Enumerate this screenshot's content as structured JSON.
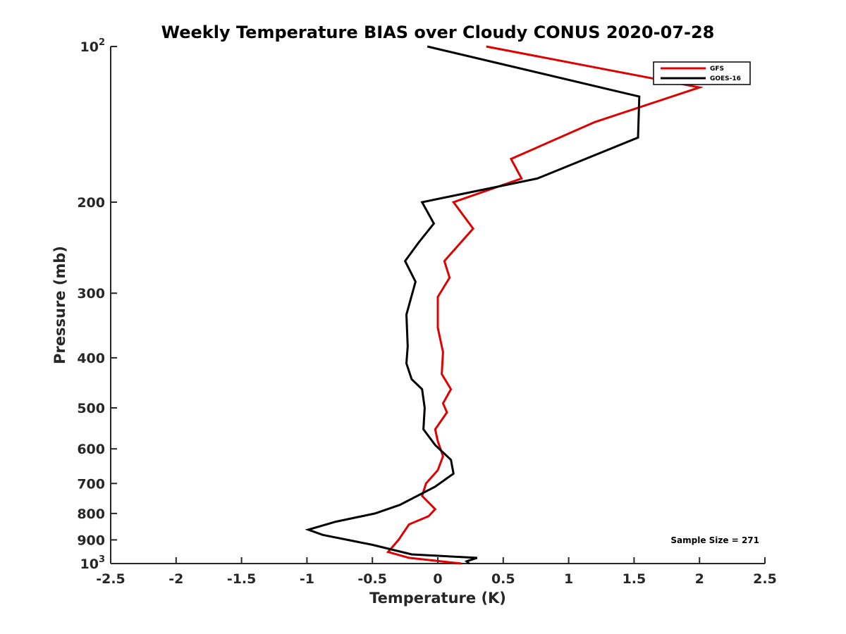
{
  "chart_data": {
    "type": "line",
    "title": "Weekly Temperature BIAS over Cloudy CONUS 2020-07-28",
    "xlabel": "Temperature (K)",
    "ylabel": "Pressure (mb)",
    "xlim": [
      -2.5,
      2.5
    ],
    "ylim": [
      100,
      1000
    ],
    "y_scale": "log",
    "y_reversed": true,
    "grid": false,
    "legend_position": "top-right",
    "x_ticks": [
      -2.5,
      -2,
      -1.5,
      -1,
      -0.5,
      0,
      0.5,
      1,
      1.5,
      2,
      2.5
    ],
    "x_tick_labels": [
      "-2.5",
      "-2",
      "-1.5",
      "-1",
      "-0.5",
      "0",
      "0.5",
      "1",
      "1.5",
      "2",
      "2.5"
    ],
    "y_ticks": [
      {
        "value": 100,
        "base": "10",
        "exp": "2"
      },
      {
        "value": 200,
        "label": "200"
      },
      {
        "value": 300,
        "label": "300"
      },
      {
        "value": 400,
        "label": "400"
      },
      {
        "value": 500,
        "label": "500"
      },
      {
        "value": 600,
        "label": "600"
      },
      {
        "value": 700,
        "label": "700"
      },
      {
        "value": 800,
        "label": "800"
      },
      {
        "value": 900,
        "label": "900"
      },
      {
        "value": 1000,
        "base": "10",
        "exp": "3"
      }
    ],
    "annotation": "Sample Size = 271",
    "series": [
      {
        "name": "GFS",
        "color": "#e00000",
        "points": [
          [
            0.37,
            100
          ],
          [
            2.0,
            120
          ],
          [
            1.2,
            140
          ],
          [
            0.56,
            165
          ],
          [
            0.64,
            180
          ],
          [
            0.12,
            200
          ],
          [
            0.27,
            225
          ],
          [
            0.05,
            260
          ],
          [
            0.09,
            280
          ],
          [
            0.0,
            305
          ],
          [
            0.0,
            350
          ],
          [
            0.04,
            390
          ],
          [
            0.03,
            430
          ],
          [
            0.1,
            460
          ],
          [
            0.04,
            490
          ],
          [
            0.07,
            510
          ],
          [
            -0.02,
            550
          ],
          [
            0.0,
            580
          ],
          [
            0.04,
            620
          ],
          [
            0.0,
            660
          ],
          [
            -0.09,
            700
          ],
          [
            -0.12,
            740
          ],
          [
            -0.02,
            785
          ],
          [
            -0.07,
            810
          ],
          [
            -0.22,
            840
          ],
          [
            -0.3,
            900
          ],
          [
            -0.38,
            950
          ],
          [
            -0.22,
            975
          ],
          [
            0.18,
            1000
          ]
        ]
      },
      {
        "name": "GOES-16",
        "color": "#000000",
        "points": [
          [
            -0.08,
            100
          ],
          [
            1.54,
            125
          ],
          [
            1.53,
            150
          ],
          [
            0.76,
            180
          ],
          [
            -0.12,
            200
          ],
          [
            -0.03,
            220
          ],
          [
            -0.15,
            240
          ],
          [
            -0.25,
            260
          ],
          [
            -0.17,
            285
          ],
          [
            -0.24,
            330
          ],
          [
            -0.23,
            380
          ],
          [
            -0.24,
            410
          ],
          [
            -0.2,
            440
          ],
          [
            -0.12,
            460
          ],
          [
            -0.1,
            500
          ],
          [
            -0.11,
            550
          ],
          [
            -0.02,
            590
          ],
          [
            0.1,
            630
          ],
          [
            0.12,
            670
          ],
          [
            -0.02,
            710
          ],
          [
            -0.29,
            770
          ],
          [
            -0.48,
            800
          ],
          [
            -0.78,
            830
          ],
          [
            -0.99,
            860
          ],
          [
            -0.88,
            880
          ],
          [
            -0.5,
            920
          ],
          [
            -0.2,
            960
          ],
          [
            0.3,
            975
          ],
          [
            0.22,
            990
          ],
          [
            0.24,
            1000
          ]
        ]
      }
    ]
  }
}
